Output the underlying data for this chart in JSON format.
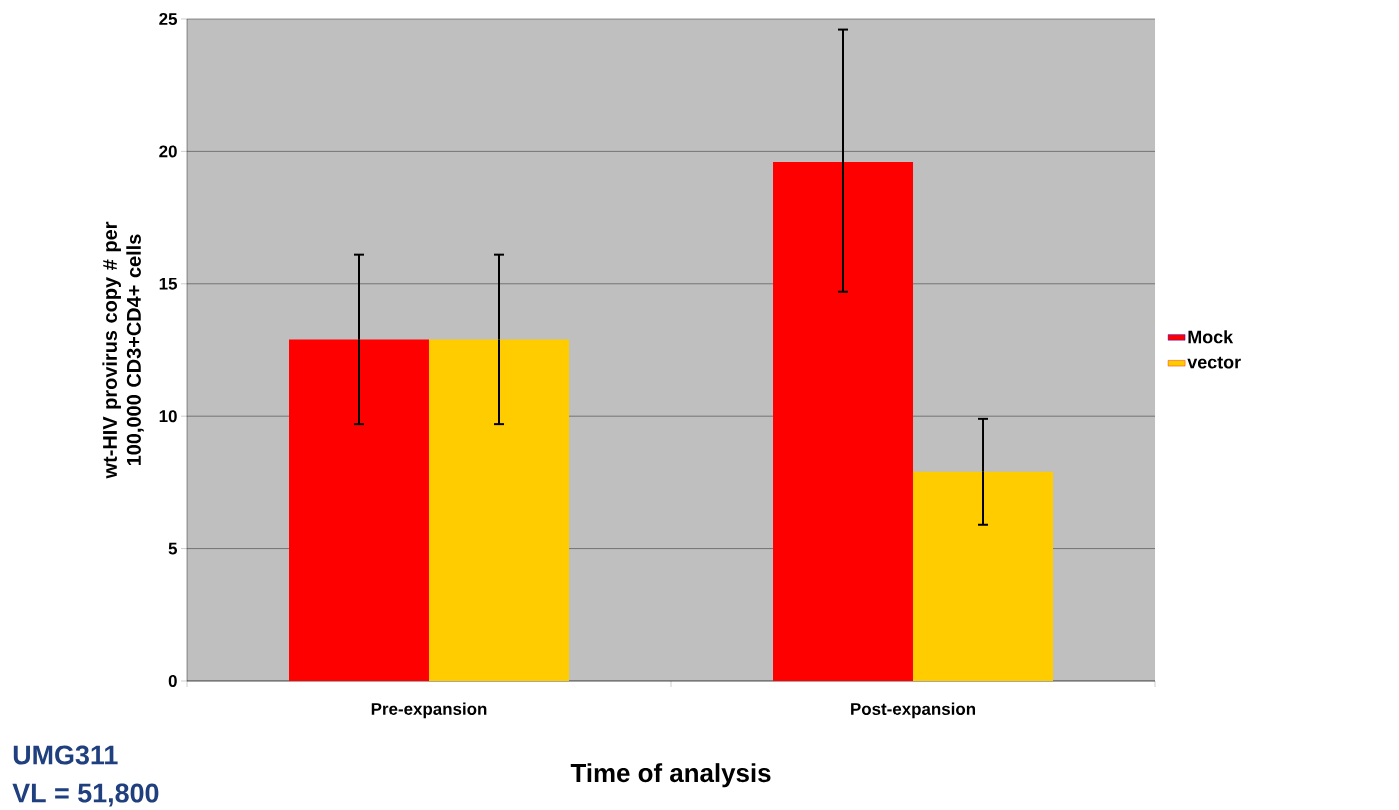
{
  "chart_data": {
    "type": "bar",
    "xlabel": "Time of analysis",
    "ylabel": "wt-HIV provirus copy # per 100,000 CD3+CD4+ cells",
    "categories": [
      "Pre-expansion",
      "Post-expansion"
    ],
    "series": [
      {
        "name": "Mock",
        "color": "#ff0000",
        "values": [
          12.9,
          19.6
        ],
        "errors": [
          [
            9.7,
            16.1
          ],
          [
            14.7,
            24.6
          ]
        ]
      },
      {
        "name": "vector",
        "color": "#ffcc00",
        "values": [
          12.9,
          7.9
        ],
        "errors": [
          [
            9.7,
            16.1
          ],
          [
            5.9,
            9.9
          ]
        ]
      }
    ],
    "ylim": [
      0,
      25
    ],
    "yticks": [
      0,
      5,
      10,
      15,
      20,
      25
    ],
    "grid": "y",
    "legend": "right",
    "annotations": [
      "UMG311",
      "VL    =  51,800"
    ]
  }
}
